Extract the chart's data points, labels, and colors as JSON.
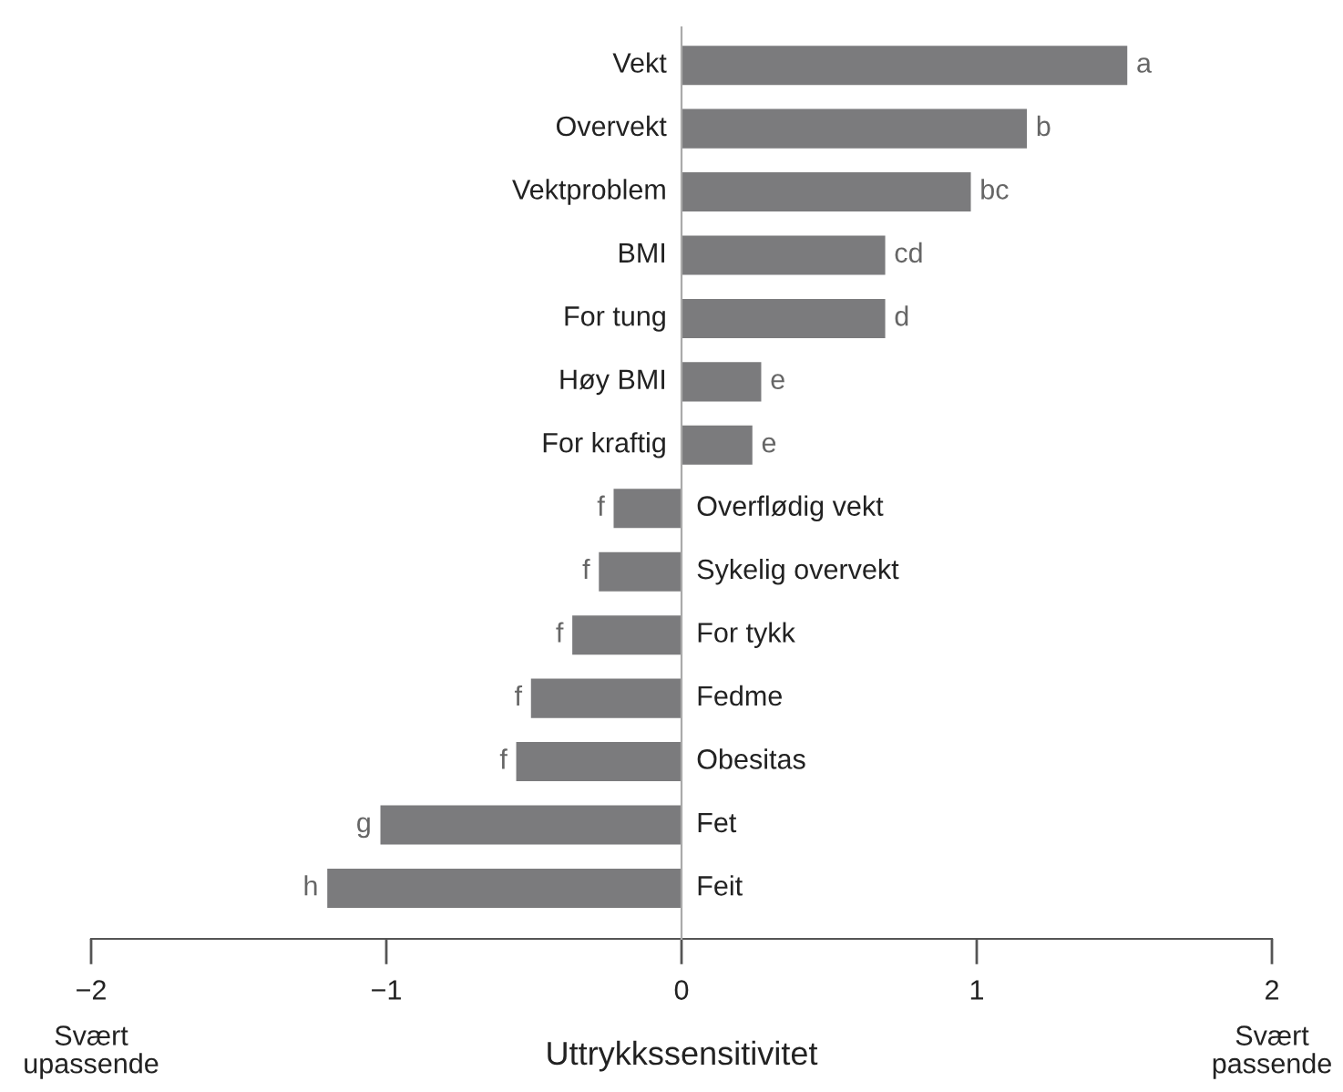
{
  "chart_data": {
    "type": "bar",
    "orientation": "horizontal",
    "xlabel": "Uttrykkssensitivitet",
    "categories": [
      "Vekt",
      "Overvekt",
      "Vektproblem",
      "BMI",
      "For tung",
      "Høy BMI",
      "For kraftig",
      "Overflødig vekt",
      "Sykelig overvekt",
      "For tykk",
      "Fedme",
      "Obesitas",
      "Fet",
      "Feit"
    ],
    "values": [
      1.51,
      1.17,
      0.98,
      0.69,
      0.69,
      0.27,
      0.24,
      -0.23,
      -0.28,
      -0.37,
      -0.51,
      -0.56,
      -1.02,
      -1.2
    ],
    "value_labels": [
      "a",
      "b",
      "bc",
      "cd",
      "d",
      "e",
      "e",
      "f",
      "f",
      "f",
      "f",
      "f",
      "g",
      "h"
    ],
    "color": "#7b7b7d",
    "xlim": [
      -2,
      2
    ],
    "xticks": [
      {
        "value": -2,
        "label": "−2"
      },
      {
        "value": -1,
        "label": "−1"
      },
      0,
      1,
      2
    ],
    "annotations": [
      "Svært\nupassende",
      "Svært\npassende"
    ],
    "grid": false
  }
}
